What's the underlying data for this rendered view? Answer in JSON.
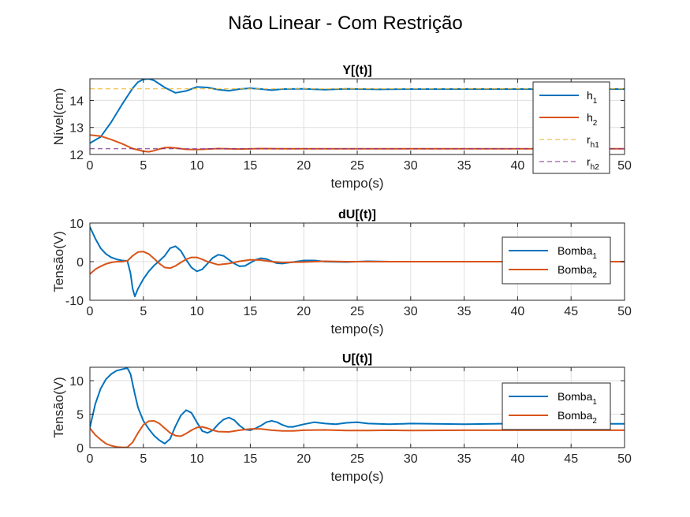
{
  "figure": {
    "title": "Não Linear - Com Restrição"
  },
  "colors": {
    "blue": "#0072BD",
    "orange": "#D95319",
    "yellow": "#EDB120",
    "purple": "#7E2F8E"
  },
  "chart_data": [
    {
      "type": "line",
      "title": "Y[(t)]",
      "xlabel": "tempo(s)",
      "ylabel": "Nível(cm)",
      "xlim": [
        0,
        50
      ],
      "ylim": [
        12,
        14.8
      ],
      "xticks": [
        0,
        5,
        10,
        15,
        20,
        25,
        30,
        35,
        40,
        45,
        50
      ],
      "xticklabels": [
        "0",
        "5",
        "10",
        "15",
        "20",
        "25",
        "30",
        "35",
        "40",
        "",
        "50"
      ],
      "yticks": [
        12,
        13,
        14
      ],
      "yticklabels": [
        "12",
        "13",
        "14"
      ],
      "grid": true,
      "legend_position": "right",
      "series": [
        {
          "name": "h",
          "sub": "1",
          "color": "#0072BD",
          "dash": "solid",
          "x": [
            0,
            1,
            2,
            3,
            4,
            4.5,
            5,
            5.5,
            6,
            7,
            8,
            9,
            10,
            11,
            12,
            13,
            14,
            15,
            16,
            17,
            18,
            20,
            22,
            24,
            27,
            30,
            35,
            40,
            45,
            50
          ],
          "y": [
            12.42,
            12.65,
            13.2,
            13.85,
            14.45,
            14.68,
            14.78,
            14.8,
            14.74,
            14.48,
            14.28,
            14.35,
            14.5,
            14.48,
            14.4,
            14.36,
            14.42,
            14.45,
            14.42,
            14.38,
            14.42,
            14.43,
            14.4,
            14.43,
            14.41,
            14.42,
            14.42,
            14.42,
            14.42,
            14.42
          ]
        },
        {
          "name": "h",
          "sub": "2",
          "color": "#D95319",
          "dash": "solid",
          "x": [
            0,
            1,
            2,
            3,
            4,
            5,
            5.5,
            6,
            6.5,
            7,
            7.5,
            8,
            9,
            10,
            11,
            12,
            14,
            16,
            18,
            20,
            25,
            30,
            35,
            40,
            45,
            50
          ],
          "y": [
            12.72,
            12.68,
            12.55,
            12.4,
            12.22,
            12.12,
            12.1,
            12.14,
            12.2,
            12.25,
            12.26,
            12.24,
            12.19,
            12.18,
            12.2,
            12.22,
            12.2,
            12.22,
            12.21,
            12.21,
            12.21,
            12.21,
            12.21,
            12.21,
            12.21,
            12.21
          ]
        },
        {
          "name": "r",
          "sub": "h1",
          "color": "#EDB120",
          "dash": "dashed",
          "x": [
            0,
            50
          ],
          "y": [
            14.43,
            14.43
          ]
        },
        {
          "name": "r",
          "sub": "h2",
          "color": "#7E2F8E",
          "dash": "dashed",
          "x": [
            0,
            50
          ],
          "y": [
            12.21,
            12.21
          ]
        }
      ]
    },
    {
      "type": "line",
      "title": "dU[(t)]",
      "xlabel": "tempo(s)",
      "ylabel": "Tensão(V)",
      "xlim": [
        0,
        50
      ],
      "ylim": [
        -10,
        10
      ],
      "xticks": [
        0,
        5,
        10,
        15,
        20,
        25,
        30,
        35,
        40,
        45,
        50
      ],
      "xticklabels": [
        "0",
        "5",
        "10",
        "15",
        "20",
        "25",
        "30",
        "35",
        "40",
        "45",
        "50"
      ],
      "yticks": [
        -10,
        0,
        10
      ],
      "yticklabels": [
        "-10",
        "0",
        "10"
      ],
      "grid": true,
      "legend_position": "right",
      "series": [
        {
          "name": "Bomba",
          "sub": "1",
          "color": "#0072BD",
          "dash": "solid",
          "x": [
            0,
            0.5,
            1,
            1.5,
            2,
            2.5,
            3,
            3.5,
            3.8,
            4,
            4.2,
            4.5,
            5,
            5.5,
            6,
            6.5,
            7,
            7.5,
            8,
            8.5,
            9,
            9.5,
            10,
            10.5,
            11,
            11.5,
            12,
            12.5,
            13,
            13.5,
            14,
            14.5,
            15,
            15.5,
            16,
            16.5,
            17,
            17.5,
            18,
            19,
            20,
            21,
            22,
            24,
            26,
            28,
            30,
            35,
            40,
            45,
            50
          ],
          "y": [
            9,
            6,
            3.5,
            2,
            1.1,
            0.6,
            0.3,
            0.2,
            -3,
            -7,
            -9,
            -7,
            -4.5,
            -2.5,
            -1,
            0.2,
            1.5,
            3.5,
            4,
            2.8,
            0.5,
            -1.5,
            -2.5,
            -2,
            -0.5,
            1,
            1.8,
            1.5,
            0.5,
            -0.5,
            -1.2,
            -1.1,
            -0.3,
            0.5,
            0.9,
            0.7,
            0.1,
            -0.4,
            -0.5,
            -0.1,
            0.3,
            0.3,
            0,
            -0.1,
            0.1,
            0,
            0,
            0,
            0,
            0,
            0
          ]
        },
        {
          "name": "Bomba",
          "sub": "2",
          "color": "#D95319",
          "dash": "solid",
          "x": [
            0,
            0.5,
            1,
            1.5,
            2,
            2.5,
            3,
            3.5,
            4,
            4.5,
            5,
            5.5,
            6,
            6.5,
            7,
            7.5,
            8,
            8.5,
            9,
            9.5,
            10,
            10.5,
            11,
            12,
            13,
            14,
            15,
            16,
            17,
            18,
            20,
            22,
            24,
            26,
            28,
            30,
            35,
            40,
            45,
            50
          ],
          "y": [
            -3.2,
            -2,
            -1.2,
            -0.6,
            -0.2,
            0,
            0,
            0.2,
            1.5,
            2.5,
            2.6,
            2,
            0.8,
            -0.5,
            -1.5,
            -1.7,
            -1.1,
            -0.2,
            0.6,
            1.1,
            1.1,
            0.6,
            0,
            -0.8,
            -0.5,
            0.1,
            0.5,
            0.4,
            0,
            -0.2,
            -0.1,
            0.1,
            0,
            0,
            0,
            0,
            0,
            0,
            0,
            0
          ]
        }
      ]
    },
    {
      "type": "line",
      "title": "U[(t)]",
      "xlabel": "tempo(s)",
      "ylabel": "Tensão(V)",
      "xlim": [
        0,
        50
      ],
      "ylim": [
        0,
        12
      ],
      "xticks": [
        0,
        5,
        10,
        15,
        20,
        25,
        30,
        35,
        40,
        45,
        50
      ],
      "xticklabels": [
        "0",
        "5",
        "10",
        "15",
        "20",
        "25",
        "30",
        "35",
        "40",
        "45",
        "50"
      ],
      "yticks": [
        0,
        5,
        10
      ],
      "yticklabels": [
        "0",
        "5",
        "10"
      ],
      "grid": true,
      "legend_position": "right",
      "series": [
        {
          "name": "Bomba",
          "sub": "1",
          "color": "#0072BD",
          "dash": "solid",
          "x": [
            0,
            0.5,
            1,
            1.5,
            2,
            2.5,
            3,
            3.5,
            3.8,
            4.2,
            4.5,
            5,
            5.5,
            6,
            6.5,
            7,
            7.5,
            8,
            8.5,
            9,
            9.5,
            10,
            10.5,
            11,
            11.5,
            12,
            12.5,
            13,
            13.5,
            14,
            14.5,
            15,
            15.5,
            16,
            16.5,
            17,
            17.5,
            18,
            18.5,
            19,
            20,
            21,
            22,
            23,
            24,
            25,
            26,
            28,
            30,
            35,
            40,
            45,
            50
          ],
          "y": [
            3,
            6.5,
            8.8,
            10.2,
            11,
            11.5,
            11.7,
            11.9,
            11,
            8,
            6,
            4,
            2.8,
            1.8,
            1.1,
            0.6,
            1.3,
            3.2,
            4.8,
            5.6,
            5.2,
            3.8,
            2.5,
            2.2,
            2.6,
            3.5,
            4.2,
            4.5,
            4.1,
            3.3,
            2.7,
            2.6,
            2.9,
            3.3,
            3.8,
            4,
            3.8,
            3.4,
            3.1,
            3.1,
            3.5,
            3.8,
            3.6,
            3.5,
            3.7,
            3.8,
            3.6,
            3.5,
            3.6,
            3.5,
            3.6,
            3.55,
            3.55
          ]
        },
        {
          "name": "Bomba",
          "sub": "2",
          "color": "#D95319",
          "dash": "solid",
          "x": [
            0,
            0.5,
            1,
            1.5,
            2,
            2.5,
            3,
            3.5,
            4,
            4.5,
            5,
            5.5,
            6,
            6.5,
            7,
            7.5,
            8,
            8.5,
            9,
            9.5,
            10,
            10.5,
            11,
            11.5,
            12,
            13,
            14,
            15,
            16,
            17,
            18,
            19,
            20,
            22,
            24,
            26,
            28,
            30,
            35,
            40,
            45,
            50
          ],
          "y": [
            2.9,
            1.9,
            1.2,
            0.6,
            0.3,
            0.1,
            0.05,
            0.05,
            0.8,
            2.2,
            3.4,
            3.95,
            4,
            3.6,
            2.9,
            2.2,
            1.8,
            1.7,
            2.1,
            2.6,
            3,
            3.1,
            2.9,
            2.6,
            2.4,
            2.35,
            2.6,
            2.8,
            2.8,
            2.6,
            2.5,
            2.5,
            2.6,
            2.65,
            2.55,
            2.55,
            2.6,
            2.55,
            2.6,
            2.6,
            2.6,
            2.6
          ]
        }
      ]
    }
  ]
}
